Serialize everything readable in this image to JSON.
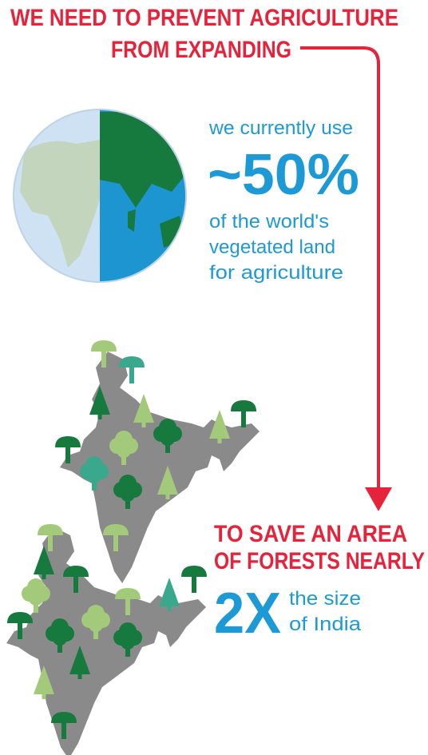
{
  "headline": {
    "lines": [
      "WE NEED TO PREVENT AGRICULTURE",
      "FROM EXPANDING"
    ]
  },
  "usage": {
    "lead": "we currently use",
    "figure": "~50%",
    "lines": [
      "of the world's",
      "vegetated land",
      "for agriculture"
    ]
  },
  "goal": {
    "lines": [
      "TO SAVE AN AREA",
      "OF FORESTS NEARLY"
    ],
    "figure": "2X",
    "suffix": [
      "the size",
      "of India"
    ]
  }
}
